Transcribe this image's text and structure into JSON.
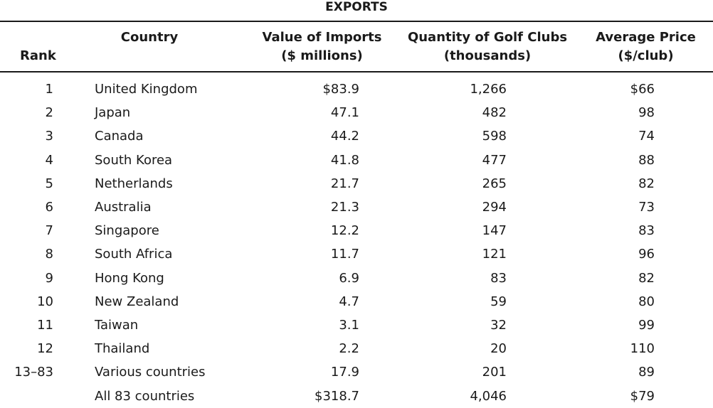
{
  "title": "EXPORTS",
  "headers": {
    "rank": "Rank",
    "country": "Country",
    "value_line1": "Value of Imports",
    "value_line2": "($ millions)",
    "qty_line1": "Quantity of Golf Clubs",
    "qty_line2": "(thousands)",
    "price_line1": "Average Price",
    "price_line2": "($/club)"
  },
  "rows": [
    {
      "rank": "1",
      "country": "United Kingdom",
      "value": "$83.9",
      "quantity": "1,266",
      "price": "$66"
    },
    {
      "rank": "2",
      "country": "Japan",
      "value": "47.1",
      "quantity": "482",
      "price": "98"
    },
    {
      "rank": "3",
      "country": "Canada",
      "value": "44.2",
      "quantity": "598",
      "price": "74"
    },
    {
      "rank": "4",
      "country": "South Korea",
      "value": "41.8",
      "quantity": "477",
      "price": "88"
    },
    {
      "rank": "5",
      "country": "Netherlands",
      "value": "21.7",
      "quantity": "265",
      "price": "82"
    },
    {
      "rank": "6",
      "country": "Australia",
      "value": "21.3",
      "quantity": "294",
      "price": "73"
    },
    {
      "rank": "7",
      "country": "Singapore",
      "value": "12.2",
      "quantity": "147",
      "price": "83"
    },
    {
      "rank": "8",
      "country": "South Africa",
      "value": "11.7",
      "quantity": "121",
      "price": "96"
    },
    {
      "rank": "9",
      "country": "Hong Kong",
      "value": "6.9",
      "quantity": "83",
      "price": "82"
    },
    {
      "rank": "10",
      "country": "New Zealand",
      "value": "4.7",
      "quantity": "59",
      "price": "80"
    },
    {
      "rank": "11",
      "country": "Taiwan",
      "value": "3.1",
      "quantity": "32",
      "price": "99"
    },
    {
      "rank": "12",
      "country": "Thailand",
      "value": "2.2",
      "quantity": "20",
      "price": "110"
    },
    {
      "rank": "13–83",
      "country": "Various countries",
      "value": "17.9",
      "quantity": "201",
      "price": "89"
    },
    {
      "rank": "",
      "country": "All 83 countries",
      "value": "$318.7",
      "quantity": "4,046",
      "price": "$79"
    }
  ]
}
